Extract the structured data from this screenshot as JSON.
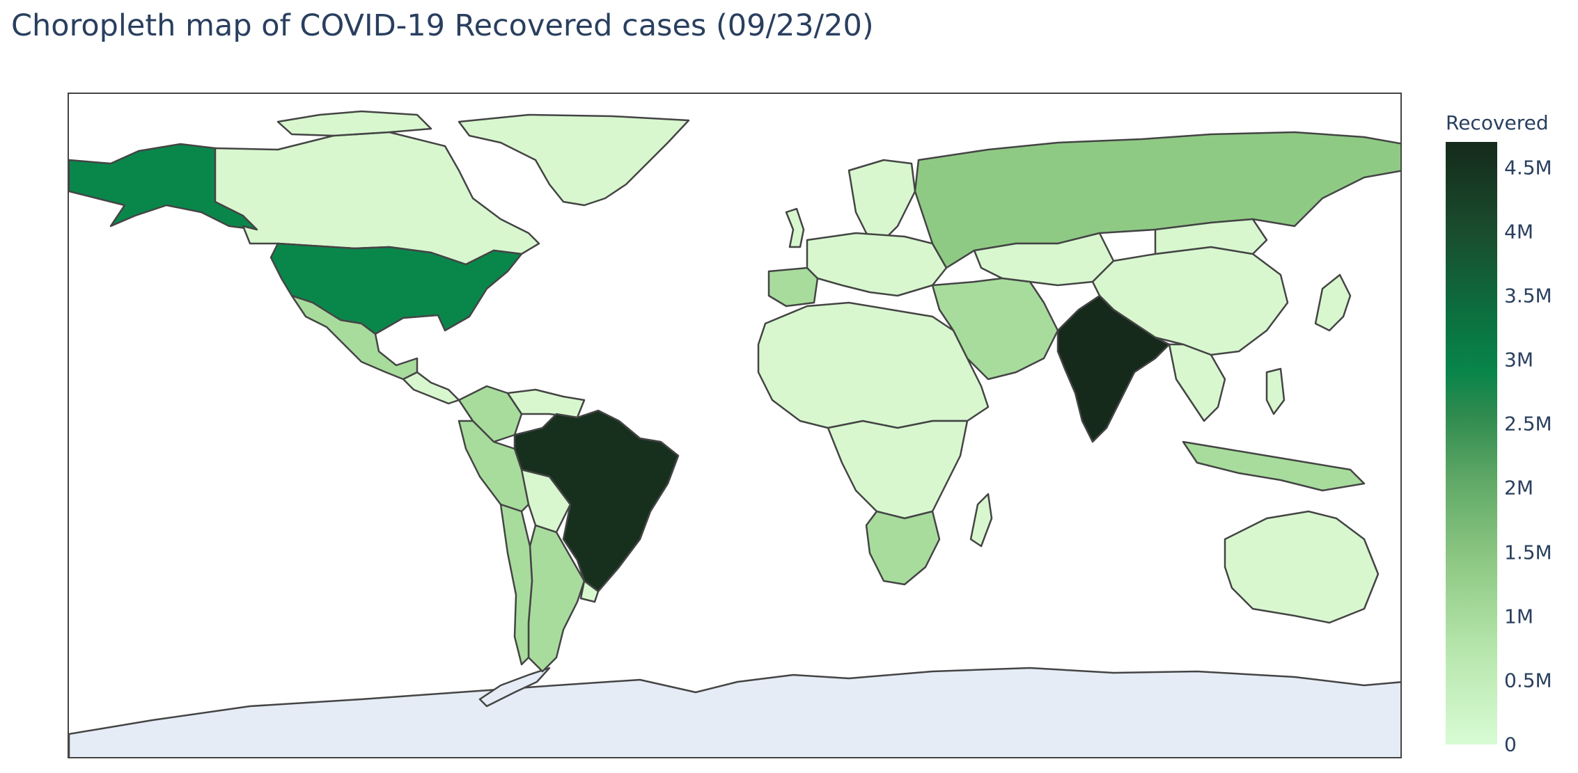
{
  "title": "Choropleth map of COVID-19 Recovered cases (09/23/20)",
  "colorbar": {
    "title": "Recovered",
    "ticks": [
      "0",
      "0.5M",
      "1M",
      "1.5M",
      "2M",
      "2.5M",
      "3M",
      "3.5M",
      "4M",
      "4.5M"
    ],
    "tick_values": [
      0,
      500000,
      1000000,
      1500000,
      2000000,
      2500000,
      3000000,
      3500000,
      4000000,
      4500000
    ],
    "max": 4700000,
    "colors": [
      "#d8fbd4",
      "#b8e7ae",
      "#8fc985",
      "#5fa866",
      "#08854a",
      "#0c6e3e",
      "#1a4d2e",
      "#152a1b"
    ]
  },
  "map_colors": {
    "no_data": "#e5ecf6",
    "border": "#444444",
    "land_low": "#d5f5cc"
  },
  "chart_data": {
    "type": "choropleth",
    "title": "Choropleth map of COVID-19 Recovered cases (09/23/20)",
    "color_scale": "Greens",
    "colorbar_title": "Recovered",
    "range": [
      0,
      4700000
    ],
    "approximate_values": [
      {
        "country": "India",
        "recovered": 4590000
      },
      {
        "country": "Brazil",
        "recovered": 4100000
      },
      {
        "country": "United States",
        "recovered": 2700000
      },
      {
        "country": "Russia",
        "recovered": 930000
      },
      {
        "country": "Colombia",
        "recovered": 650000
      },
      {
        "country": "Peru",
        "recovered": 640000
      },
      {
        "country": "Mexico",
        "recovered": 600000
      },
      {
        "country": "South Africa",
        "recovered": 590000
      },
      {
        "country": "Argentina",
        "recovered": 530000
      }
    ]
  }
}
